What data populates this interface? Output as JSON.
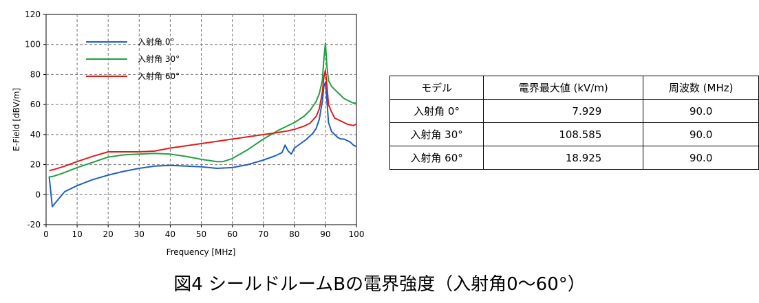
{
  "chart_data": {
    "type": "line",
    "xlabel": "Frequency [MHz]",
    "ylabel": "E-Field [dBV/m]",
    "xlim": [
      0,
      100
    ],
    "ylim": [
      -20,
      120
    ],
    "xticks": [
      0,
      10,
      20,
      30,
      40,
      50,
      60,
      70,
      80,
      90,
      100
    ],
    "yticks": [
      -20,
      0,
      20,
      40,
      60,
      80,
      100,
      120
    ],
    "grid": true,
    "legend_position": "top-left",
    "series": [
      {
        "name": "入射角 0°",
        "color": "#1f5fbf",
        "x": [
          1,
          2,
          4,
          6,
          10,
          15,
          20,
          25,
          30,
          35,
          40,
          45,
          50,
          55,
          60,
          65,
          70,
          74,
          76,
          77,
          78,
          79,
          80,
          82,
          84,
          86,
          87,
          88,
          89,
          89.5,
          90,
          90.5,
          91,
          92,
          93,
          94,
          95,
          96,
          98,
          99,
          100
        ],
        "y": [
          12,
          -8,
          -3,
          2,
          6,
          10,
          13,
          15.5,
          17.5,
          19,
          19.5,
          19,
          18.5,
          17.5,
          18,
          20,
          23,
          26,
          28,
          33,
          29,
          27,
          31,
          34,
          37,
          41,
          44,
          50,
          62,
          72,
          75,
          62,
          48,
          42,
          40,
          38,
          37,
          37,
          35,
          33,
          32
        ]
      },
      {
        "name": "入射角 30°",
        "color": "#20a040",
        "x": [
          1,
          2,
          5,
          10,
          15,
          20,
          25,
          30,
          35,
          40,
          45,
          50,
          55,
          57,
          60,
          65,
          70,
          75,
          77,
          80,
          83,
          85,
          87,
          88,
          89,
          89.5,
          90,
          90.5,
          91,
          92,
          93,
          94,
          95,
          96,
          97,
          98,
          99,
          100
        ],
        "y": [
          12,
          12,
          14,
          18,
          21.5,
          25,
          26.5,
          27,
          27.5,
          27,
          25.5,
          23.5,
          22,
          22,
          24,
          30,
          37,
          43,
          45,
          48,
          52,
          56,
          62,
          67,
          76,
          90,
          101,
          85,
          76,
          72,
          70,
          68,
          66,
          64,
          63,
          62,
          61,
          61
        ]
      },
      {
        "name": "入射角 60°",
        "color": "#e01c1c",
        "x": [
          1,
          3,
          6,
          10,
          15,
          20,
          25,
          30,
          35,
          40,
          45,
          50,
          55,
          60,
          65,
          70,
          75,
          78,
          80,
          83,
          85,
          87,
          88,
          89,
          89.5,
          90,
          90.5,
          91,
          92,
          93,
          94,
          95,
          96,
          97,
          98,
          99,
          100
        ],
        "y": [
          16,
          17,
          19,
          22,
          25.5,
          28.5,
          28.5,
          28.5,
          29,
          31,
          32.5,
          34,
          35.5,
          37,
          38.5,
          40,
          41.5,
          42.5,
          43.5,
          45.5,
          47.5,
          52,
          57,
          68,
          78,
          83,
          72,
          60,
          55,
          51,
          50,
          49,
          48,
          47,
          46.5,
          46,
          47
        ]
      }
    ]
  },
  "table": {
    "headers": [
      "モデル",
      "電界最大値 (kV/m)",
      "周波数 (MHz)"
    ],
    "rows": [
      [
        "入射角  0°",
        "7.929",
        "90.0"
      ],
      [
        "入射角 30°",
        "108.585",
        "90.0"
      ],
      [
        "入射角 60°",
        "18.925",
        "90.0"
      ]
    ]
  },
  "caption": "図4 シールドルームBの電界強度（入射角0～60°）"
}
